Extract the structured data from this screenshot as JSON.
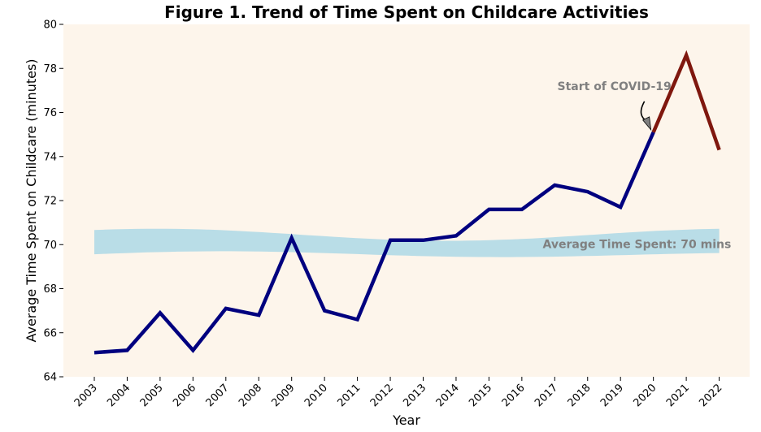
{
  "chart_data": {
    "type": "line",
    "title": "Figure 1. Trend of Time Spent on Childcare Activities",
    "xlabel": "Year",
    "ylabel": "Average Time Spent on Childcare (minutes)",
    "ylim": [
      64,
      80
    ],
    "yticks": [
      64,
      66,
      68,
      70,
      72,
      74,
      76,
      78,
      80
    ],
    "x": [
      2003,
      2004,
      2005,
      2006,
      2007,
      2008,
      2009,
      2010,
      2011,
      2012,
      2013,
      2014,
      2015,
      2016,
      2017,
      2018,
      2019,
      2020,
      2021,
      2022
    ],
    "values": [
      65.1,
      65.2,
      66.9,
      65.2,
      67.1,
      66.8,
      70.3,
      67.0,
      66.6,
      70.2,
      70.2,
      70.4,
      71.6,
      71.6,
      72.7,
      72.4,
      71.7,
      75.1,
      78.6,
      74.3
    ],
    "highlight_from": 2020,
    "grid": false,
    "colors": {
      "main_line": "#00007f",
      "covid_line": "#7f170e",
      "band": "#add8e6",
      "background": "#fdf5eb",
      "annotation": "#808080"
    },
    "band": {
      "center": 70,
      "label": "Average Time Spent: 70 mins"
    },
    "annotations": [
      {
        "text": "Start of COVID-19",
        "x": 2020,
        "y": 75.1
      }
    ]
  }
}
